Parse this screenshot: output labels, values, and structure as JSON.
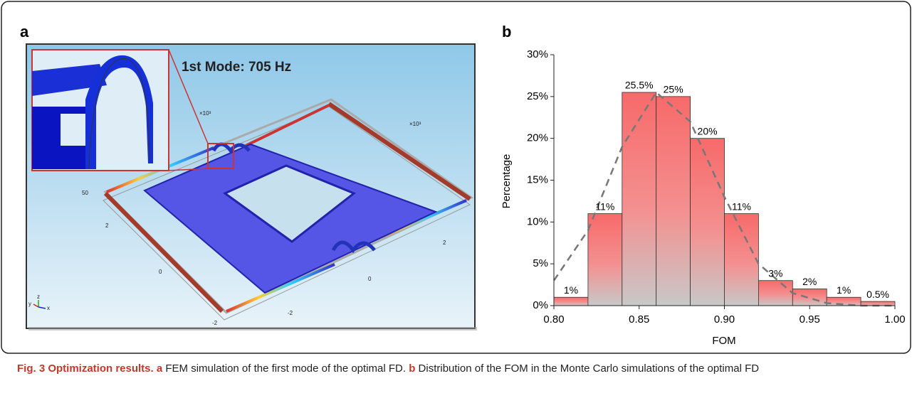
{
  "panel_a": {
    "label": "a",
    "title": "1st Mode: 705 Hz",
    "labels": [
      "×10³",
      "×10³",
      "50",
      "2",
      "0",
      "-2",
      "2",
      "0",
      "-2",
      "y",
      "z",
      "x"
    ]
  },
  "chart_data": {
    "type": "histogram",
    "panel_label": "b",
    "x_label": "FOM",
    "y_label": "Percentage",
    "bins": [
      0.8,
      0.82,
      0.84,
      0.86,
      0.88,
      0.9,
      0.92,
      0.94,
      0.96,
      0.98,
      1.0
    ],
    "values": [
      1,
      11,
      25.5,
      25,
      20,
      11,
      3,
      2,
      1,
      0.5
    ],
    "value_labels": [
      "1%",
      "11%",
      "25.5%",
      "25%",
      "20%",
      "11%",
      "3%",
      "2%",
      "1%",
      "0.5%"
    ],
    "color": "#f76a6a",
    "fit": {
      "x": [
        0.8,
        0.82,
        0.84,
        0.86,
        0.88,
        0.9,
        0.92,
        0.94,
        0.96,
        0.98,
        1.0
      ],
      "values": [
        3,
        9,
        19,
        25.5,
        22,
        13,
        5,
        1.5,
        0.3,
        0,
        0
      ],
      "color": "#777777"
    },
    "xlim": [
      0.8,
      1.0
    ],
    "xticks": [
      {
        "value": 0.8,
        "label": "0.80"
      },
      0.85,
      {
        "value": 0.9,
        "label": "0.90"
      },
      0.95,
      {
        "value": 1,
        "label": "1.00"
      }
    ],
    "ylim": [
      0,
      30
    ],
    "yticks": [
      {
        "value": 0,
        "label": "0%"
      },
      {
        "value": 5,
        "label": "5%"
      },
      {
        "value": 10,
        "label": "10%"
      },
      {
        "value": 15,
        "label": "15%"
      },
      {
        "value": 20,
        "label": "20%"
      },
      {
        "value": 25,
        "label": "25%"
      },
      {
        "value": 30,
        "label": "30%"
      }
    ]
  },
  "caption": {
    "figure": "Fig. 3 Optimization results.",
    "a_label": "a",
    "a_text": "FEM simulation of the first mode of the optimal FD.",
    "b_label": "b",
    "b_text": "Distribution of the FOM in the Monte Carlo simulations of the optimal FD"
  }
}
